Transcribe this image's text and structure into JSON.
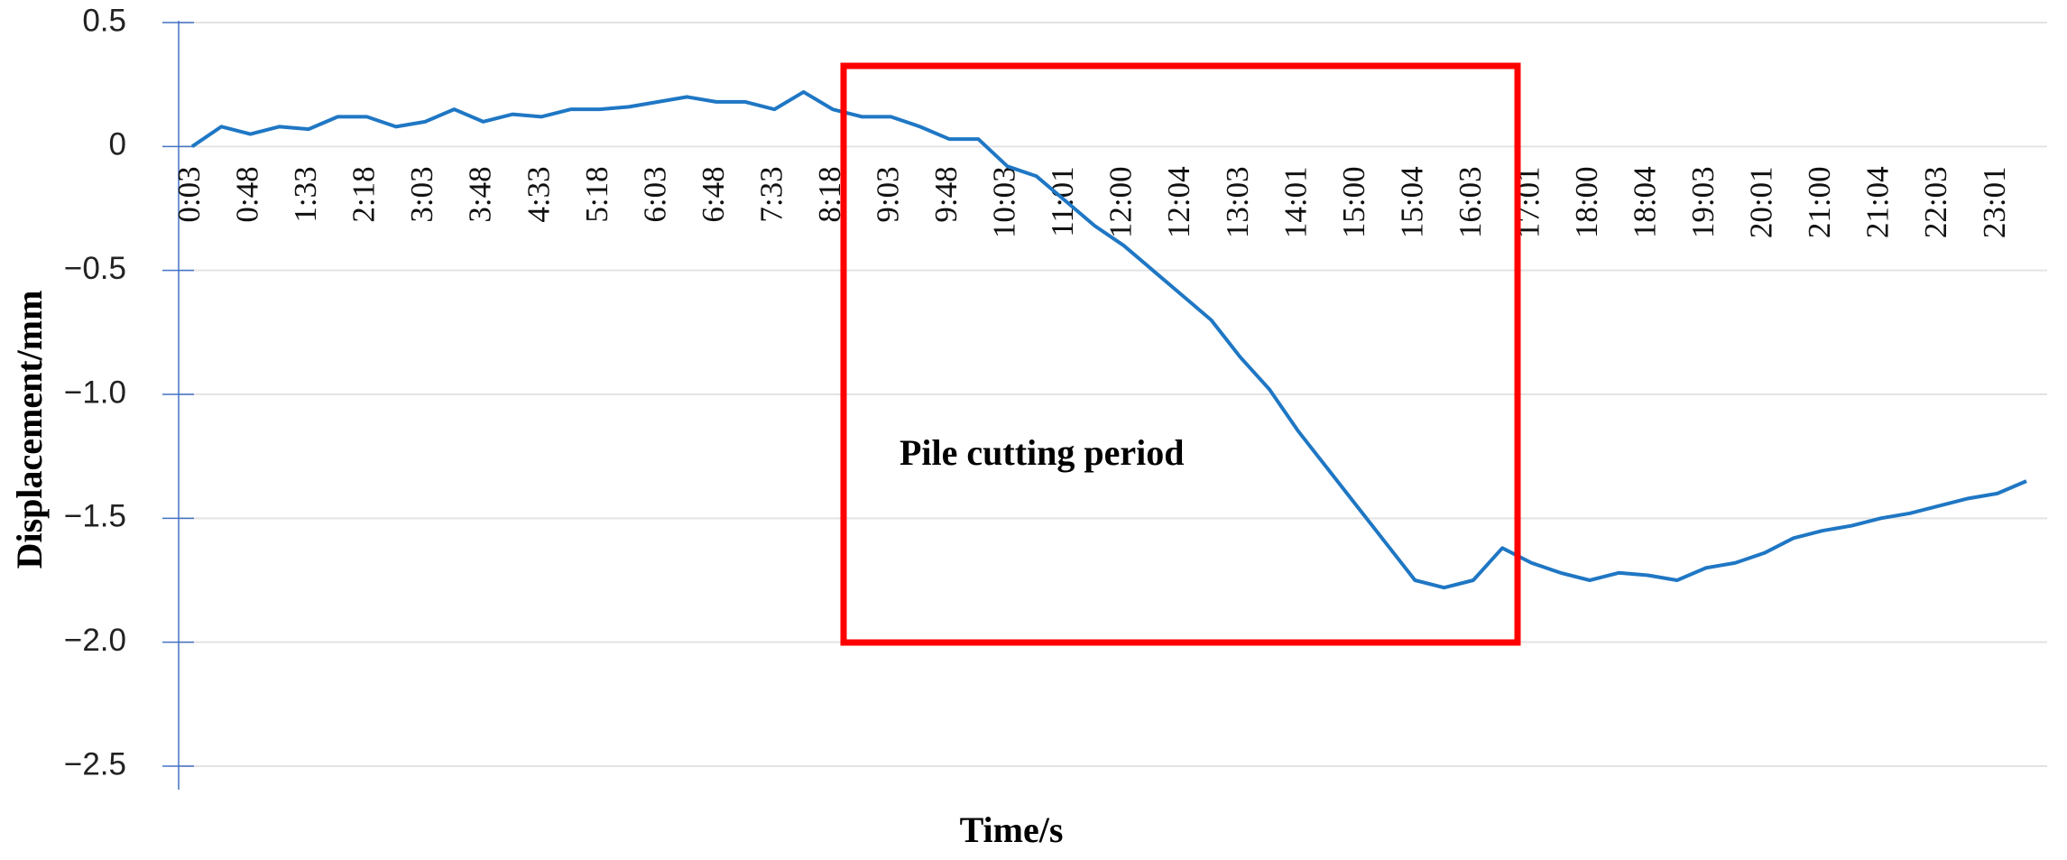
{
  "chart_data": {
    "type": "line",
    "x_label": "Time/s",
    "y_label": "Displacement/mm",
    "annotation": "Pile cutting period",
    "categories": [
      "0:03",
      null,
      "0:48",
      null,
      "1:33",
      null,
      "2:18",
      null,
      "3:03",
      null,
      "3:48",
      null,
      "4:33",
      null,
      "5:18",
      null,
      "6:03",
      null,
      "6:48",
      null,
      "7:33",
      null,
      "8:18",
      null,
      "9:03",
      null,
      "9:48",
      null,
      "10:03",
      null,
      "11:01",
      null,
      "12:00",
      null,
      "12:04",
      null,
      "13:03",
      null,
      "14:01",
      null,
      "15:00",
      null,
      "15:04",
      null,
      "16:03",
      null,
      "17:01",
      null,
      "18:00",
      null,
      "18:04",
      null,
      "19:03",
      null,
      "20:01",
      null,
      "21:00",
      null,
      "21:04",
      null,
      "22:03",
      null,
      "23:01",
      null
    ],
    "series": [
      {
        "name": "Displacement",
        "color": "#1f77c4",
        "values": [
          0.0,
          0.08,
          0.05,
          0.08,
          0.07,
          0.12,
          0.12,
          0.08,
          0.1,
          0.15,
          0.1,
          0.13,
          0.12,
          0.15,
          0.15,
          0.16,
          0.18,
          0.2,
          0.18,
          0.18,
          0.15,
          0.22,
          0.15,
          0.12,
          0.12,
          0.08,
          0.03,
          0.03,
          -0.08,
          -0.12,
          -0.22,
          -0.32,
          -0.4,
          -0.5,
          -0.6,
          -0.7,
          -0.85,
          -0.98,
          -1.15,
          -1.3,
          -1.45,
          -1.6,
          -1.75,
          -1.78,
          -1.75,
          -1.62,
          -1.68,
          -1.72,
          -1.75,
          -1.72,
          -1.73,
          -1.75,
          -1.7,
          -1.68,
          -1.64,
          -1.58,
          -1.55,
          -1.53,
          -1.5,
          -1.48,
          -1.45,
          -1.42,
          -1.4,
          -1.35
        ]
      }
    ],
    "ylim": [
      -2.5,
      0.5
    ],
    "yticks": [
      0.5,
      0,
      {
        "value": -0.5,
        "label": "−0.5"
      },
      {
        "value": -1.0,
        "label": "−1.0"
      },
      {
        "value": -1.5,
        "label": "−1.5"
      },
      {
        "value": -2.0,
        "label": "−2.0"
      },
      {
        "value": -2.5,
        "label": "−2.5"
      }
    ],
    "grid": true
  }
}
